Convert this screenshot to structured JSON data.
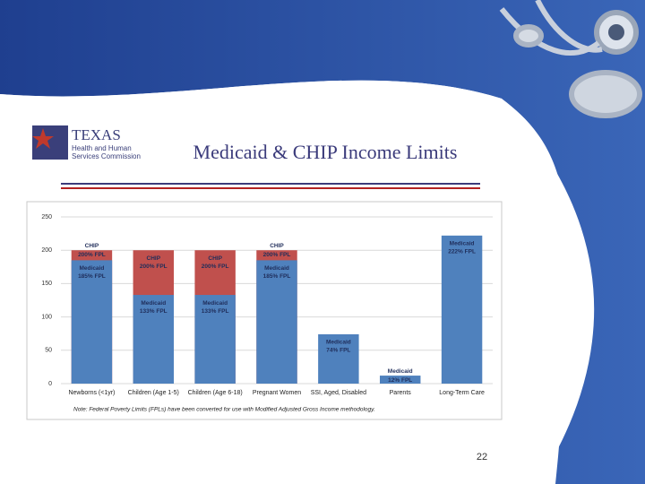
{
  "slide": {
    "logo_title": "TEXAS",
    "logo_line1": "Health and Human",
    "logo_line2": "Services Commission",
    "note": "Note: Federal Poverty Limits (FPLs) have been converted for use with Modified Adjusted Gross Income methodology.",
    "page_number": "22"
  },
  "chart_data": {
    "type": "bar",
    "title": "Medicaid & CHIP Income Limits",
    "categories": [
      "Newborns (<1yr)",
      "Children (Age 1-5)",
      "Children (Age 6-18)",
      "Pregnant Women",
      "SSI, Aged, Disabled",
      "Parents",
      "Long-Term Care"
    ],
    "series": [
      {
        "name": "CHIP",
        "color": "#c0504d",
        "values": [
          200,
          200,
          200,
          200,
          null,
          null,
          null
        ],
        "value_labels": [
          "200% FPL",
          "200% FPL",
          "200% FPL",
          "200% FPL",
          null,
          null,
          null
        ]
      },
      {
        "name": "Medicaid",
        "color": "#4f81bd",
        "values": [
          185,
          133,
          133,
          185,
          74,
          12,
          222
        ],
        "value_labels": [
          "185% FPL",
          "133% FPL",
          "133% FPL",
          "185% FPL",
          "74% FPL",
          "12% FPL",
          "222% FPL"
        ]
      }
    ],
    "ylim": [
      0,
      250
    ],
    "yticks": [
      0,
      50,
      100,
      150,
      200,
      250
    ],
    "grid": true
  }
}
